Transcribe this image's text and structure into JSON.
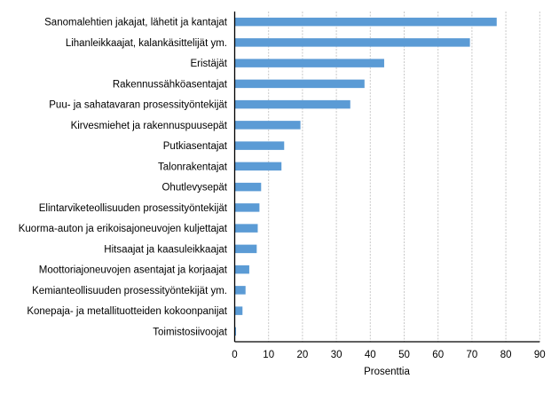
{
  "chart_data": {
    "type": "bar",
    "orientation": "horizontal",
    "categories": [
      "Sanomalehtien jakajat, lähetit ja kantajat",
      "Lihanleikkaajat, kalankäsittelijät ym.",
      "Eristäjät",
      "Rakennussähköasentajat",
      "Puu- ja sahatavaran prosessityöntekijät",
      "Kirvesmiehet ja rakennuspuusepät",
      "Putkiasentajat",
      "Talonrakentajat",
      "Ohutlevysepät",
      "Elintarviketeollisuuden prosessityöntekijät",
      "Kuorma-auton ja erikoisajoneuvojen kuljettajat",
      "Hitsaajat ja kaasuleikkaajat",
      "Moottoriajoneuvojen asentajat ja korjaajat",
      "Kemianteollisuuden prosessityöntekijät ym.",
      "Konepaja- ja metallituotteiden kokoonpanijat",
      "Toimistosiivoojat"
    ],
    "values": [
      77.3,
      69.4,
      44.1,
      38.3,
      34.1,
      19.4,
      14.6,
      13.8,
      7.8,
      7.3,
      6.8,
      6.5,
      4.3,
      3.2,
      2.3,
      0.4
    ],
    "xlabel": "Prosenttia",
    "ylabel": "",
    "xlim": [
      0,
      90
    ],
    "xticks": [
      "0",
      "10",
      "20",
      "30",
      "40",
      "50",
      "60",
      "70",
      "80",
      "90"
    ],
    "grid": "vertical dashed",
    "bar_color": "#5b9bd5",
    "legend": "none"
  }
}
